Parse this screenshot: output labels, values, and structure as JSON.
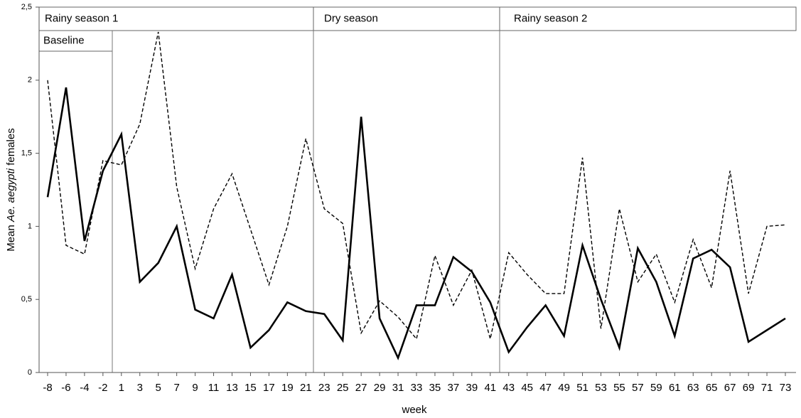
{
  "chart_data": {
    "type": "line",
    "xlabel": "week",
    "ylabel": [
      "Mean ",
      "Ae. aegypti",
      " females"
    ],
    "annotations": [
      "Rainy season 1",
      "Dry season",
      "Rainy season 2",
      "Baseline"
    ],
    "categories": [
      "-8",
      "-6",
      "-4",
      "-2",
      "1",
      "3",
      "5",
      "7",
      "9",
      "11",
      "13",
      "15",
      "17",
      "19",
      "21",
      "23",
      "25",
      "27",
      "29",
      "31",
      "33",
      "35",
      "37",
      "39",
      "41",
      "43",
      "45",
      "47",
      "49",
      "51",
      "53",
      "55",
      "57",
      "59",
      "61",
      "63",
      "65",
      "67",
      "69",
      "71",
      "73"
    ],
    "series": [
      {
        "color": "#000000",
        "dashed": false,
        "values": [
          1.2,
          1.95,
          0.9,
          1.38,
          1.63,
          0.62,
          0.75,
          1.0,
          0.43,
          0.37,
          0.67,
          0.17,
          0.29,
          0.48,
          0.42,
          0.4,
          0.22,
          1.75,
          0.37,
          0.1,
          0.46,
          0.46,
          0.79,
          0.69,
          0.48,
          0.14,
          0.31,
          0.46,
          0.25,
          0.87,
          0.5,
          0.17,
          0.85,
          0.62,
          0.25,
          0.78,
          0.84,
          0.72,
          0.21,
          0.29,
          0.37
        ]
      },
      {
        "color": "#000000",
        "dashed": true,
        "values": [
          2.0,
          0.87,
          0.81,
          1.45,
          1.42,
          1.7,
          2.33,
          1.27,
          0.71,
          1.12,
          1.36,
          0.98,
          0.6,
          1.0,
          1.6,
          1.12,
          1.02,
          0.27,
          0.49,
          0.38,
          0.23,
          0.8,
          0.46,
          0.7,
          0.23,
          0.82,
          0.67,
          0.54,
          0.54,
          1.47,
          0.3,
          1.12,
          0.62,
          0.81,
          0.48,
          0.91,
          0.58,
          1.38,
          0.54,
          1.0,
          1.01
        ]
      }
    ],
    "ylim": [
      0,
      2.5
    ],
    "yticks": [
      0,
      {
        "value": 0.5,
        "label": "0,5"
      },
      1,
      {
        "value": 1.5,
        "label": "1,5"
      },
      2,
      {
        "value": 2.5,
        "label": "2,5"
      }
    ]
  }
}
